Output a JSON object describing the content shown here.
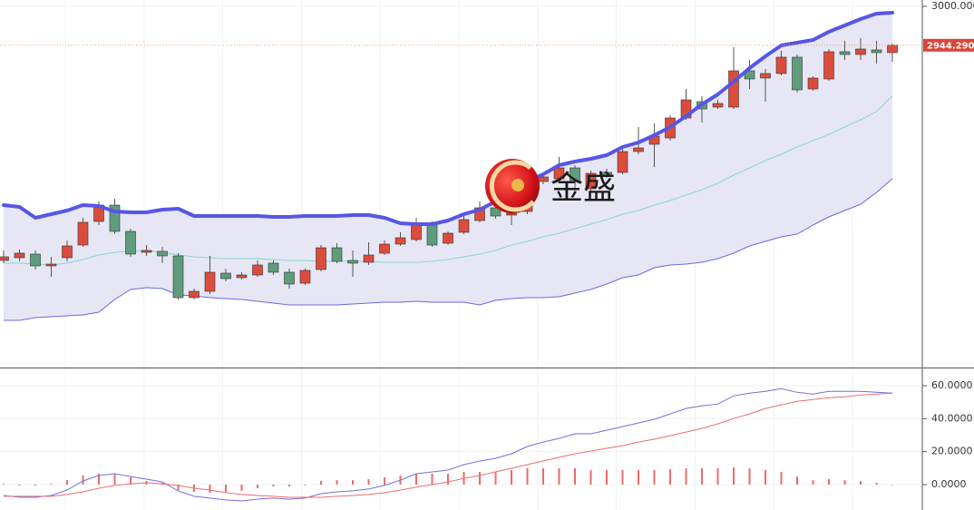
{
  "chart_data": [
    {
      "type": "candlestick",
      "ylim": [
        2482.6,
        3009.1
      ],
      "yticks": [
        {
          "value": 3000,
          "label": "3000.0000"
        }
      ],
      "grid": true,
      "up_color": "#dc4c3c",
      "down_color": "#5e9c7c",
      "open": [
        2636.0,
        2639.9,
        2645.1,
        2628.2,
        2639.9,
        2658.1,
        2691.9,
        2715.3,
        2677.6,
        2647.7,
        2649.0,
        2642.5,
        2582.7,
        2591.8,
        2617.8,
        2611.3,
        2615.2,
        2632.1,
        2619.1,
        2603.5,
        2623.0,
        2654.2,
        2636.0,
        2633.4,
        2646.4,
        2659.4,
        2665.9,
        2686.7,
        2660.7,
        2676.3,
        2693.2,
        2711.4,
        2701.0,
        2706.2,
        2749.1,
        2753.0,
        2768.6,
        2738.7,
        2762.1,
        2762.1,
        2792.0,
        2802.4,
        2811.5,
        2840.1,
        2863.5,
        2855.7,
        2855.7,
        2907.7,
        2897.3,
        2903.8,
        2927.2,
        2881.7,
        2896.0,
        2935.0,
        2931.1,
        2937.6,
        2933.7
      ],
      "high": [
        2650.3,
        2651.6,
        2650.3,
        2641.2,
        2664.6,
        2697.1,
        2720.5,
        2724.4,
        2681.5,
        2658.1,
        2655.5,
        2646.4,
        2595.7,
        2642.5,
        2624.3,
        2619.1,
        2636.0,
        2636.0,
        2624.3,
        2624.3,
        2658.1,
        2660.7,
        2650.3,
        2662.0,
        2664.6,
        2676.3,
        2697.1,
        2691.9,
        2677.6,
        2699.7,
        2720.5,
        2716.6,
        2715.3,
        2762.1,
        2762.1,
        2784.2,
        2772.5,
        2764.7,
        2767.3,
        2795.9,
        2827.1,
        2832.3,
        2844.0,
        2881.7,
        2871.3,
        2866.1,
        2941.5,
        2923.3,
        2910.3,
        2936.3,
        2931.1,
        2899.9,
        2938.9,
        2950.6,
        2954.5,
        2950.6,
        2946.7
      ],
      "low": [
        2632.1,
        2634.7,
        2623.0,
        2612.6,
        2634.7,
        2655.5,
        2686.7,
        2673.7,
        2641.2,
        2642.5,
        2632.1,
        2580.1,
        2580.1,
        2587.9,
        2606.1,
        2608.7,
        2612.6,
        2615.2,
        2595.7,
        2600.9,
        2620.4,
        2632.1,
        2612.6,
        2629.5,
        2643.8,
        2656.8,
        2663.3,
        2655.5,
        2658.1,
        2673.7,
        2690.6,
        2695.8,
        2686.7,
        2702.3,
        2745.2,
        2750.4,
        2736.1,
        2734.8,
        2754.3,
        2759.5,
        2788.1,
        2769.9,
        2807.6,
        2837.5,
        2833.6,
        2853.1,
        2853.1,
        2881.7,
        2863.5,
        2901.2,
        2876.5,
        2879.1,
        2893.4,
        2923.3,
        2923.3,
        2918.1,
        2920.7
      ],
      "close": [
        2641.2,
        2646.4,
        2628.2,
        2630.8,
        2656.8,
        2690.6,
        2715.3,
        2677.6,
        2645.1,
        2650.3,
        2642.5,
        2582.7,
        2591.8,
        2619.1,
        2610.0,
        2615.2,
        2629.5,
        2619.1,
        2602.2,
        2621.7,
        2654.2,
        2634.7,
        2632.1,
        2643.8,
        2659.4,
        2668.5,
        2688.0,
        2658.1,
        2675.0,
        2694.5,
        2711.4,
        2699.7,
        2703.6,
        2754.3,
        2755.6,
        2768.6,
        2749.1,
        2760.8,
        2758.2,
        2792.0,
        2797.2,
        2814.1,
        2840.1,
        2866.1,
        2853.1,
        2860.9,
        2907.7,
        2896.0,
        2903.8,
        2927.2,
        2880.4,
        2897.3,
        2935.0,
        2931.1,
        2938.9,
        2933.7,
        2944.29
      ],
      "last_price_label": "2944.290",
      "bands": {
        "fill": "#e6e6f4",
        "upper": {
          "color": "#5656e6",
          "values": [
            2715.3,
            2712.7,
            2697.1,
            2702.3,
            2707.5,
            2715.3,
            2714.0,
            2706.2,
            2704.9,
            2704.9,
            2708.8,
            2710.1,
            2699.7,
            2699.7,
            2699.7,
            2699.7,
            2699.7,
            2698.4,
            2698.4,
            2699.7,
            2699.7,
            2699.7,
            2701.0,
            2701.0,
            2697.1,
            2689.3,
            2688.0,
            2688.0,
            2693.2,
            2702.3,
            2708.8,
            2720.5,
            2734.8,
            2749.1,
            2759.5,
            2772.5,
            2777.7,
            2781.6,
            2786.8,
            2798.5,
            2805.0,
            2815.4,
            2827.1,
            2842.7,
            2859.6,
            2873.9,
            2892.1,
            2911.6,
            2928.5,
            2944.1,
            2948.0,
            2951.9,
            2963.6,
            2972.7,
            2981.8,
            2989.6,
            2990.9
          ]
        },
        "middle": {
          "color": "#86d8c8",
          "values": [
            2632.1,
            2632.1,
            2630.8,
            2629.5,
            2632.1,
            2637.3,
            2643.8,
            2647.7,
            2649.0,
            2650.3,
            2647.7,
            2643.8,
            2641.2,
            2639.9,
            2638.6,
            2638.6,
            2638.6,
            2637.3,
            2636.0,
            2636.0,
            2634.7,
            2634.7,
            2634.7,
            2634.7,
            2633.4,
            2633.4,
            2633.4,
            2634.7,
            2637.3,
            2641.2,
            2645.1,
            2650.3,
            2658.1,
            2663.3,
            2669.8,
            2675.0,
            2681.5,
            2688.0,
            2694.5,
            2702.3,
            2707.5,
            2715.3,
            2721.8,
            2729.6,
            2737.4,
            2746.5,
            2758.2,
            2768.6,
            2779.0,
            2788.1,
            2798.5,
            2807.6,
            2816.7,
            2827.1,
            2837.5,
            2849.2,
            2871.4
          ]
        },
        "lower": {
          "color": "#6a6ae0",
          "values": [
            2550.2,
            2550.2,
            2554.1,
            2555.4,
            2556.7,
            2558.0,
            2561.9,
            2580.1,
            2594.4,
            2597.0,
            2595.7,
            2586.6,
            2585.3,
            2582.7,
            2581.4,
            2580.1,
            2577.5,
            2574.9,
            2572.3,
            2572.3,
            2572.3,
            2572.3,
            2573.6,
            2574.9,
            2576.2,
            2576.2,
            2577.5,
            2576.2,
            2576.2,
            2576.2,
            2572.3,
            2578.8,
            2581.4,
            2582.7,
            2582.7,
            2584.0,
            2589.2,
            2594.4,
            2602.2,
            2611.3,
            2615.2,
            2625.6,
            2629.5,
            2630.8,
            2633.4,
            2638.6,
            2646.4,
            2656.8,
            2663.3,
            2669.8,
            2673.7,
            2686.7,
            2698.4,
            2707.5,
            2716.6,
            2733.5,
            2753.0
          ]
        }
      },
      "watermark": "金盛"
    },
    {
      "type": "macd",
      "ylim": [
        -15.4,
        69.9
      ],
      "yticks": [
        {
          "value": 60,
          "label": "60.0000"
        },
        {
          "value": 40,
          "label": "40.0000"
        },
        {
          "value": 20,
          "label": "20.0000"
        },
        {
          "value": 0,
          "label": "0.0000"
        }
      ],
      "grid": true,
      "series": [
        {
          "color": "#7070e0",
          "values": [
            -6.6,
            -7.7,
            -7.7,
            -6.6,
            -3.3,
            2.2,
            5.5,
            6.6,
            4.9,
            3.3,
            1.6,
            -3.8,
            -7.1,
            -8.2,
            -9.3,
            -9.9,
            -8.8,
            -8.2,
            -8.8,
            -8.2,
            -5.5,
            -4.4,
            -3.8,
            -2.7,
            -0.5,
            2.7,
            6.6,
            7.7,
            8.8,
            12.1,
            14.3,
            15.9,
            18.7,
            23.1,
            25.8,
            28.0,
            30.8,
            30.8,
            33.0,
            35.2,
            37.4,
            39.6,
            42.9,
            46.2,
            47.8,
            48.9,
            53.8,
            55.5,
            56.6,
            58.2,
            56.0,
            54.9,
            56.6,
            56.6,
            56.6,
            56.0,
            55.5
          ]
        },
        {
          "color": "#ec6e6e",
          "values": [
            -7.1,
            -7.1,
            -7.1,
            -7.1,
            -6.0,
            -4.4,
            -2.2,
            -0.5,
            0.5,
            1.1,
            0.5,
            -0.5,
            -2.2,
            -3.3,
            -4.9,
            -6.0,
            -6.6,
            -7.1,
            -7.7,
            -7.7,
            -7.7,
            -7.1,
            -6.6,
            -6.0,
            -4.9,
            -3.3,
            -1.6,
            0,
            1.6,
            3.8,
            5.5,
            7.7,
            9.9,
            12.1,
            14.3,
            16.5,
            18.7,
            20.3,
            22.0,
            23.6,
            25.8,
            27.5,
            29.7,
            31.9,
            34.1,
            36.8,
            40.1,
            42.9,
            46.2,
            48.4,
            50.5,
            51.6,
            52.7,
            53.3,
            54.4,
            54.9,
            55.5
          ]
        }
      ],
      "histogram": {
        "color": "#ee6a6a",
        "values": [
          0.5,
          -0.6,
          -0.6,
          0.5,
          2.7,
          5.5,
          6.6,
          6.6,
          4.4,
          2.2,
          1.1,
          -3.3,
          -4.4,
          -4.9,
          -4.4,
          -3.8,
          -2.2,
          -1.1,
          -1.1,
          -0.5,
          2.2,
          2.7,
          2.7,
          3.3,
          4.4,
          5.5,
          6.6,
          6.6,
          6.6,
          7.7,
          7.7,
          7.7,
          8.8,
          9.9,
          9.9,
          9.9,
          9.9,
          8.8,
          8.8,
          8.8,
          8.8,
          8.8,
          9.3,
          9.9,
          9.9,
          9.9,
          10.4,
          9.9,
          8.8,
          7.7,
          4.9,
          2.7,
          3.3,
          2.7,
          2.2,
          1.1,
          0
        ]
      }
    }
  ]
}
